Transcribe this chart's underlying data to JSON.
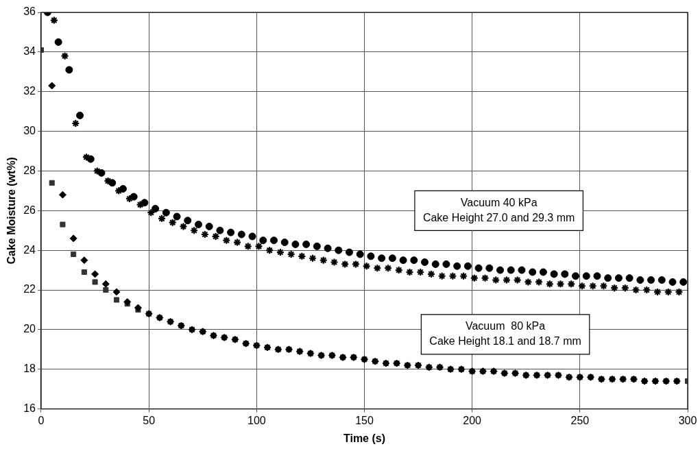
{
  "chart_data": {
    "type": "scatter",
    "xlabel": "Time (s)",
    "ylabel": "Cake Moisture (wt%)",
    "xlim": [
      0,
      300
    ],
    "xticks": [
      0,
      50,
      100,
      150,
      200,
      250,
      300
    ],
    "ylim": [
      16,
      36
    ],
    "yticks": [
      16,
      18,
      20,
      22,
      24,
      26,
      28,
      30,
      32,
      34,
      36
    ],
    "grid": true,
    "legend": false,
    "annotations": [
      "Vacuum 40 kPa\nCake Height 27.0 and 29.3 mm",
      "Vacuum  80 kPa\nCake Height 18.1 and 18.7 mm"
    ],
    "series": [
      {
        "color": "#000000",
        "marker": "circle",
        "x": [
          3,
          8,
          13,
          18,
          23,
          28,
          33,
          38,
          43,
          48,
          53,
          58,
          63,
          68,
          73,
          78,
          83,
          88,
          93,
          98,
          103,
          108,
          113,
          118,
          123,
          128,
          133,
          138,
          143,
          148,
          153,
          158,
          163,
          168,
          173,
          178,
          183,
          188,
          193,
          198,
          203,
          208,
          213,
          218,
          223,
          228,
          233,
          238,
          243,
          248,
          253,
          258,
          263,
          268,
          273,
          278,
          283,
          288,
          293,
          298
        ],
        "values": [
          36.0,
          34.5,
          33.1,
          30.8,
          28.6,
          27.9,
          27.4,
          27.1,
          26.7,
          26.4,
          26.1,
          25.9,
          25.7,
          25.5,
          25.3,
          25.2,
          25.0,
          24.9,
          24.8,
          24.7,
          24.5,
          24.5,
          24.4,
          24.3,
          24.3,
          24.2,
          24.1,
          24.0,
          23.9,
          23.8,
          23.7,
          23.6,
          23.6,
          23.5,
          23.5,
          23.4,
          23.3,
          23.3,
          23.2,
          23.2,
          23.1,
          23.1,
          23.0,
          23.0,
          23.0,
          22.9,
          22.9,
          22.8,
          22.8,
          22.7,
          22.7,
          22.7,
          22.6,
          22.6,
          22.6,
          22.5,
          22.5,
          22.5,
          22.4,
          22.4
        ]
      },
      {
        "color": "#000000",
        "marker": "cross",
        "x": [
          6,
          11,
          16,
          21,
          26,
          31,
          36,
          41,
          46,
          51,
          56,
          61,
          66,
          71,
          76,
          81,
          86,
          91,
          96,
          101,
          106,
          111,
          116,
          121,
          126,
          131,
          136,
          141,
          146,
          151,
          156,
          161,
          166,
          171,
          176,
          181,
          186,
          191,
          196,
          201,
          206,
          211,
          216,
          221,
          226,
          231,
          236,
          241,
          246,
          251,
          256,
          261,
          266,
          271,
          276,
          281,
          286,
          291,
          296
        ],
        "values": [
          35.6,
          33.8,
          30.4,
          28.7,
          28.0,
          27.5,
          27.0,
          26.6,
          26.3,
          25.9,
          25.6,
          25.4,
          25.2,
          25.0,
          24.8,
          24.7,
          24.5,
          24.4,
          24.2,
          24.2,
          24.0,
          23.9,
          23.8,
          23.7,
          23.6,
          23.5,
          23.4,
          23.3,
          23.3,
          23.2,
          23.1,
          23.1,
          23.0,
          22.9,
          22.9,
          22.8,
          22.7,
          22.7,
          22.7,
          22.6,
          22.6,
          22.5,
          22.5,
          22.5,
          22.4,
          22.4,
          22.3,
          22.3,
          22.3,
          22.2,
          22.2,
          22.2,
          22.1,
          22.1,
          22.0,
          22.0,
          21.9,
          21.9,
          21.9
        ]
      },
      {
        "color": "#000000",
        "marker": "diamond",
        "x": [
          5,
          10,
          15,
          20,
          25,
          30,
          35,
          40,
          45,
          50,
          55,
          60,
          65,
          70,
          75,
          80,
          85,
          90,
          95,
          100,
          105,
          110,
          115,
          120,
          125,
          130,
          135,
          140,
          145,
          150,
          155,
          160,
          165,
          170,
          175,
          180,
          185,
          190,
          195,
          200,
          205,
          210,
          215,
          220,
          225,
          230,
          235,
          240,
          245,
          250,
          255,
          260,
          265,
          270,
          275,
          280,
          285,
          290,
          295
        ],
        "values": [
          32.3,
          26.8,
          24.6,
          23.5,
          22.8,
          22.3,
          21.9,
          21.4,
          21.1,
          20.8,
          20.6,
          20.4,
          20.2,
          20.0,
          19.9,
          19.7,
          19.6,
          19.5,
          19.3,
          19.2,
          19.1,
          19.0,
          19.0,
          18.9,
          18.8,
          18.7,
          18.7,
          18.6,
          18.6,
          18.5,
          18.4,
          18.3,
          18.3,
          18.2,
          18.2,
          18.1,
          18.1,
          18.0,
          18.0,
          17.9,
          17.9,
          17.9,
          17.8,
          17.8,
          17.7,
          17.7,
          17.7,
          17.7,
          17.6,
          17.6,
          17.6,
          17.5,
          17.5,
          17.5,
          17.5,
          17.4,
          17.4,
          17.4,
          17.4
        ]
      },
      {
        "color": "#333333",
        "marker": "square",
        "x": [
          0,
          5,
          10,
          15,
          20,
          25,
          30,
          35,
          40,
          45,
          50,
          55,
          60,
          65,
          70,
          75,
          80,
          85,
          90,
          95,
          100,
          105,
          110,
          115,
          120,
          125,
          130,
          135,
          140,
          145,
          150,
          155,
          160,
          165,
          170,
          175,
          180,
          185,
          190,
          195,
          200,
          205,
          210,
          215,
          220,
          225,
          230,
          235,
          240,
          245,
          250,
          255,
          260,
          265,
          270,
          275,
          280,
          285,
          290,
          295,
          300
        ],
        "values": [
          34.1,
          27.4,
          25.3,
          23.8,
          22.9,
          22.4,
          22.0,
          21.5,
          21.3,
          21.0,
          20.8,
          20.6,
          20.4,
          20.2,
          20.0,
          19.9,
          19.7,
          19.6,
          19.5,
          19.3,
          19.2,
          19.1,
          19.0,
          19.0,
          18.9,
          18.8,
          18.7,
          18.7,
          18.6,
          18.6,
          18.5,
          18.4,
          18.3,
          18.3,
          18.2,
          18.2,
          18.1,
          18.1,
          18.0,
          18.0,
          17.9,
          17.9,
          17.9,
          17.8,
          17.8,
          17.7,
          17.7,
          17.7,
          17.7,
          17.6,
          17.6,
          17.6,
          17.5,
          17.5,
          17.5,
          17.5,
          17.4,
          17.4,
          17.4,
          17.4,
          17.4
        ]
      }
    ]
  }
}
